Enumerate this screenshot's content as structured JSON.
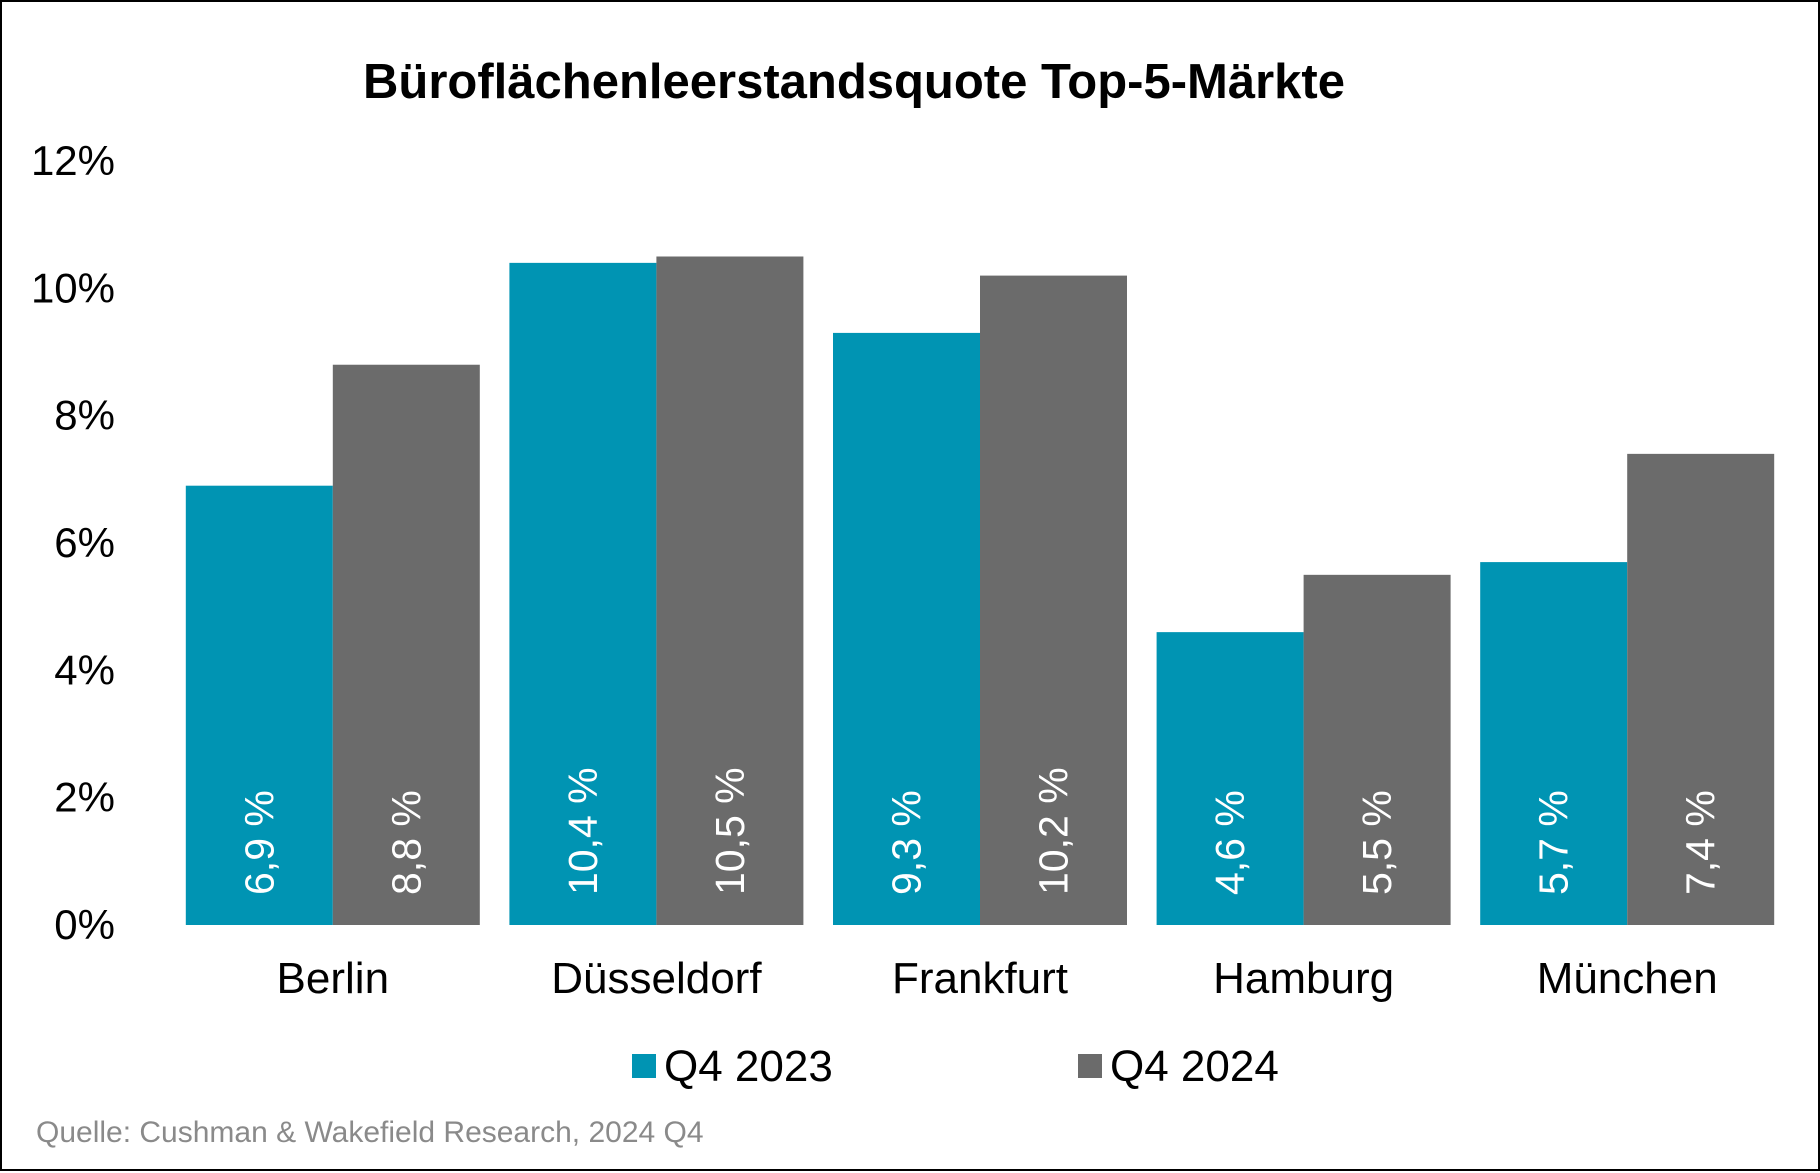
{
  "chart_data": {
    "type": "bar",
    "title": "Büroflächenleerstandsquote Top-5-Märkte",
    "categories": [
      "Berlin",
      "Düsseldorf",
      "Frankfurt",
      "Hamburg",
      "München"
    ],
    "series": [
      {
        "name": "Q4 2023",
        "color": "#0094b3",
        "values": [
          6.9,
          10.4,
          9.3,
          4.6,
          5.7
        ],
        "labels": [
          "6,9 %",
          "10,4 %",
          "9,3 %",
          "4,6 %",
          "5,7 %"
        ]
      },
      {
        "name": "Q4 2024",
        "color": "#6b6b6b",
        "values": [
          8.8,
          10.5,
          10.2,
          5.5,
          7.4
        ],
        "labels": [
          "8,8 %",
          "10,5 %",
          "10,2 %",
          "5,5 %",
          "7,4 %"
        ]
      }
    ],
    "y_ticks": [
      "0%",
      "2%",
      "4%",
      "6%",
      "8%",
      "10%",
      "12%"
    ],
    "ylim": [
      0,
      12
    ],
    "grid": false,
    "legend_position": "bottom",
    "source": "Quelle: Cushman & Wakefield Research, 2024 Q4"
  }
}
